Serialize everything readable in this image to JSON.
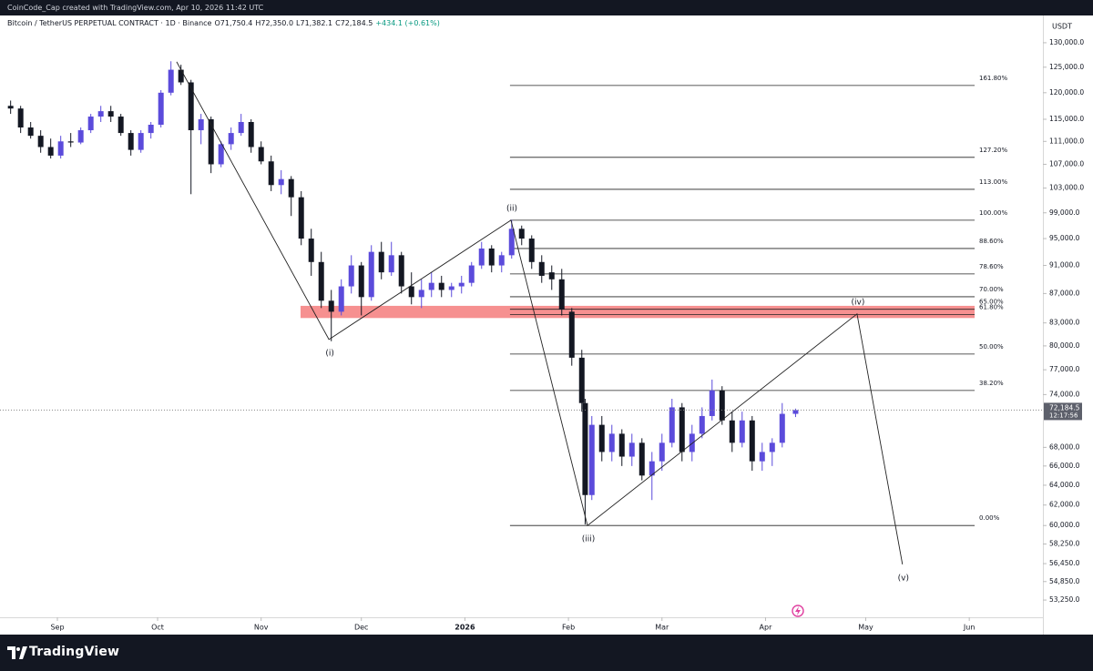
{
  "header": {
    "credit": "CoinCode_Cap created with TradingView.com, Apr 10, 2026 11:42 UTC"
  },
  "footer": {
    "brand": "TradingView"
  },
  "chart_data": {
    "type": "candlestick",
    "title": "Bitcoin / TetherUS PERPETUAL CONTRACT · 1D · Binance",
    "legend_values": [
      "O71,750.4",
      "H72,350.0",
      "L71,382.1",
      "C72,184.5",
      "+434.1 (+0.61%)"
    ],
    "currency": "USDT",
    "log_scale": true,
    "colors": {
      "up": "#5b4bdb",
      "down": "#131722",
      "zone": "#f47c7c",
      "fib": "#222222",
      "wave": "#222222"
    },
    "xlim": [
      0,
      309.5
    ],
    "xticks": [
      {
        "value": 15,
        "label": "Sep"
      },
      {
        "value": 45,
        "label": "Oct"
      },
      {
        "value": 76,
        "label": "Nov"
      },
      {
        "value": 106,
        "label": "Dec"
      },
      {
        "value": 137,
        "label": "2026"
      },
      {
        "value": 168,
        "label": "Feb"
      },
      {
        "value": 196,
        "label": "Mar"
      },
      {
        "value": 227,
        "label": "Apr"
      },
      {
        "value": 257,
        "label": "May"
      },
      {
        "value": 288,
        "label": "Jun"
      }
    ],
    "ylim": [
      51800,
      135600
    ],
    "yticks": [
      {
        "value": 130000,
        "label": "130,000.0"
      },
      {
        "value": 125000,
        "label": "125,000.0"
      },
      {
        "value": 120000,
        "label": "120,000.0"
      },
      {
        "value": 115000,
        "label": "115,000.0"
      },
      {
        "value": 111000,
        "label": "111,000.0"
      },
      {
        "value": 107000,
        "label": "107,000.0"
      },
      {
        "value": 103000,
        "label": "103,000.0"
      },
      {
        "value": 99000,
        "label": "99,000.0"
      },
      {
        "value": 95000,
        "label": "95,000.0"
      },
      {
        "value": 91000,
        "label": "91,000.0"
      },
      {
        "value": 87000,
        "label": "87,000.0"
      },
      {
        "value": 83000,
        "label": "83,000.0"
      },
      {
        "value": 80000,
        "label": "80,000.0"
      },
      {
        "value": 77000,
        "label": "77,000.0"
      },
      {
        "value": 74000,
        "label": "74,000.0"
      },
      {
        "value": 68000,
        "label": "68,000.0"
      },
      {
        "value": 66000,
        "label": "66,000.0"
      },
      {
        "value": 64000,
        "label": "64,000.0"
      },
      {
        "value": 62000,
        "label": "62,000.0"
      },
      {
        "value": 60000,
        "label": "60,000.0"
      },
      {
        "value": 58250,
        "label": "58,250.0"
      },
      {
        "value": 56450,
        "label": "56,450.0"
      },
      {
        "value": 54850,
        "label": "54,850.0"
      },
      {
        "value": 53250,
        "label": "53,250.0"
      }
    ],
    "candles": {
      "x": [
        1,
        4,
        7,
        10,
        13,
        16,
        19,
        22,
        25,
        28,
        31,
        34,
        37,
        40,
        43,
        46,
        49,
        52,
        55,
        58,
        61,
        64,
        67,
        70,
        73,
        76,
        79,
        82,
        85,
        88,
        91,
        94,
        97,
        100,
        103,
        106,
        109,
        112,
        115,
        118,
        121,
        124,
        127,
        130,
        133,
        136,
        139,
        142,
        145,
        148,
        151,
        154,
        157,
        160,
        163,
        166,
        169,
        172,
        173,
        175,
        178,
        181,
        184,
        187,
        190,
        193,
        196,
        199,
        202,
        205,
        208,
        211,
        214,
        217,
        220,
        223,
        226,
        229,
        232,
        236
      ],
      "open": [
        117500,
        117000,
        113500,
        112000,
        110000,
        108500,
        111000,
        110800,
        113000,
        115500,
        116500,
        115500,
        112500,
        109500,
        112500,
        114000,
        120000,
        124500,
        122000,
        113000,
        115000,
        107000,
        110500,
        112500,
        114500,
        110000,
        107500,
        103500,
        104500,
        101500,
        95000,
        91500,
        86000,
        84500,
        88000,
        91000,
        86500,
        93000,
        90000,
        92500,
        88000,
        86500,
        87500,
        88500,
        87500,
        88000,
        88500,
        91000,
        93500,
        91000,
        92500,
        96500,
        95000,
        91500,
        90000,
        89000,
        84500,
        78500,
        73000,
        63000,
        70500,
        67500,
        69500,
        67000,
        68500,
        65000,
        66500,
        68500,
        72500,
        67500,
        69500,
        71500,
        74500,
        71000,
        68500,
        71000,
        66500,
        67500,
        68500,
        71750.4
      ],
      "high": [
        118500,
        117500,
        114500,
        113000,
        111500,
        112000,
        112500,
        113500,
        116000,
        117500,
        117500,
        116000,
        113000,
        113000,
        114500,
        120500,
        126200,
        125500,
        122500,
        116000,
        115500,
        111000,
        113500,
        116000,
        115000,
        111000,
        108500,
        106000,
        105000,
        102500,
        96500,
        93000,
        87500,
        89000,
        92500,
        91500,
        94000,
        94500,
        94500,
        93000,
        90000,
        89000,
        90000,
        89500,
        88500,
        89500,
        91500,
        94500,
        94000,
        93000,
        97900,
        97000,
        95500,
        92500,
        91000,
        90500,
        85000,
        79500,
        73500,
        71500,
        71500,
        70500,
        70000,
        69500,
        69000,
        67500,
        69500,
        73500,
        73000,
        70500,
        72500,
        75800,
        75000,
        72000,
        72000,
        71500,
        68500,
        69000,
        73000,
        72350
      ],
      "low": [
        116000,
        112500,
        111500,
        109000,
        108000,
        108000,
        110000,
        110500,
        112500,
        114500,
        114500,
        112000,
        108500,
        109000,
        111500,
        113500,
        119500,
        121500,
        102000,
        110500,
        105500,
        106500,
        109500,
        112000,
        109000,
        107000,
        102500,
        102000,
        98500,
        94000,
        89500,
        85000,
        80600,
        84000,
        87000,
        84000,
        86000,
        89000,
        89500,
        87000,
        85500,
        85000,
        86500,
        86500,
        86500,
        87000,
        88000,
        90500,
        90000,
        90000,
        92000,
        94000,
        90500,
        88500,
        87500,
        84000,
        77500,
        72000,
        60100,
        62500,
        66500,
        66500,
        66000,
        66000,
        64500,
        62500,
        65500,
        68000,
        66500,
        66500,
        69000,
        71000,
        70500,
        67500,
        68000,
        65500,
        65500,
        66000,
        68000,
        71382.1
      ],
      "close": [
        117000,
        113500,
        112000,
        110000,
        108500,
        111000,
        110800,
        113000,
        115500,
        116500,
        115500,
        112500,
        109500,
        112500,
        114000,
        120000,
        124500,
        122000,
        113000,
        115000,
        107000,
        110500,
        112500,
        114500,
        110000,
        107500,
        103500,
        104500,
        101500,
        95000,
        91500,
        86000,
        84500,
        88000,
        91000,
        86500,
        93000,
        90000,
        92500,
        88000,
        86500,
        87500,
        88500,
        87500,
        88000,
        88500,
        91000,
        93500,
        91000,
        92500,
        96500,
        95000,
        91500,
        89500,
        89000,
        84800,
        78500,
        73000,
        63000,
        70500,
        67500,
        69500,
        67000,
        68500,
        65000,
        66500,
        68500,
        72500,
        67500,
        69500,
        71500,
        74500,
        71000,
        68500,
        71000,
        66500,
        67500,
        68500,
        71750.4,
        72184.5
      ]
    },
    "last_price": {
      "label": "72,184.5",
      "countdown": "12:17:56"
    },
    "zone": {
      "low": 83650,
      "high": 85300,
      "x": [
        87.8,
        289.6
      ]
    },
    "fib": {
      "x": [
        150.5,
        289.6
      ],
      "levels": [
        {
          "label": "161.80%",
          "value": 121400
        },
        {
          "label": "127.20%",
          "value": 108200
        },
        {
          "label": "113.00%",
          "value": 102800
        },
        {
          "label": "100.00%",
          "value": 97840
        },
        {
          "label": "88.60%",
          "value": 93500
        },
        {
          "label": "78.60%",
          "value": 89770
        },
        {
          "label": "70.00%",
          "value": 86550
        },
        {
          "label": "65.00%",
          "value": 84830
        },
        {
          "label": "61.80%",
          "value": 84100
        },
        {
          "label": "50.00%",
          "value": 78960
        },
        {
          "label": "38.20%",
          "value": 74490
        },
        {
          "label": "0.00%",
          "value": 60000
        }
      ]
    },
    "waves": {
      "x": [
        50.7,
        96.3,
        150.8,
        173.7,
        254.4,
        268
      ],
      "y": [
        126090,
        80830,
        97840,
        60000,
        84200,
        56380
      ],
      "labels": [
        null,
        "(i)",
        "(ii)",
        "(iii)",
        "(iv)",
        "(v)"
      ]
    }
  }
}
